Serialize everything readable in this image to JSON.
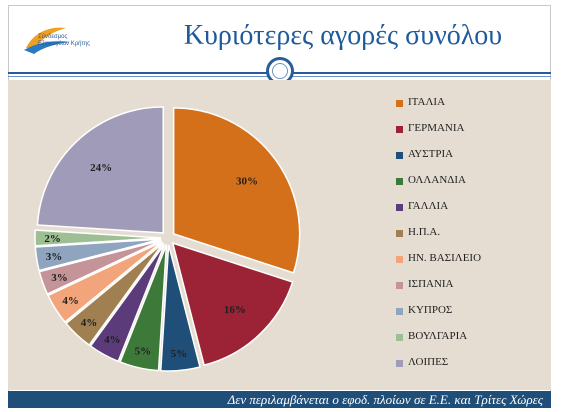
{
  "header": {
    "logo_text": "Σύνδεσμος\nΕξαγωγέων Κρήτης",
    "title": "Κυριότερες αγορές συνόλου"
  },
  "footer": {
    "note": "Δεν περιλαμβάνεται ο εφοδ. πλοίων σε Ε.Ε. και Τρίτες Χώρες"
  },
  "colors": {
    "accent": "#1f5a9a",
    "panel": "#e6ddd2",
    "footer": "#1f4e79"
  },
  "chart_data": {
    "type": "pie",
    "title": "Κυριότερες αγορές συνόλου",
    "legend_position": "right",
    "exploded": true,
    "slices": [
      {
        "label": "ΙΤΑΛΙΑ",
        "value": 30,
        "value_label": "30%",
        "color": "#d5701a"
      },
      {
        "label": "ΓΕΡΜΑΝΙΑ",
        "value": 16,
        "value_label": "16%",
        "color": "#9b2335"
      },
      {
        "label": "ΑΥΣΤΡΙΑ",
        "value": 5,
        "value_label": "5%",
        "color": "#1f4e79"
      },
      {
        "label": "ΟΛΛΑΝΔΙΑ",
        "value": 5,
        "value_label": "5%",
        "color": "#3d7a3a"
      },
      {
        "label": "ΓΑΛΛΙΑ",
        "value": 4,
        "value_label": "4%",
        "color": "#5b3b7a"
      },
      {
        "label": "Η.Π.Α.",
        "value": 4,
        "value_label": "4%",
        "color": "#a08050"
      },
      {
        "label": "ΗΝ. ΒΑΣΙΛΕΙΟ",
        "value": 4,
        "value_label": "4%",
        "color": "#f2a57a"
      },
      {
        "label": "ΙΣΠΑΝΙΑ",
        "value": 3,
        "value_label": "3%",
        "color": "#c49498"
      },
      {
        "label": "ΚΥΠΡΟΣ",
        "value": 3,
        "value_label": "3%",
        "color": "#8fa4bf"
      },
      {
        "label": "ΒΟΥΛΓΑΡΙΑ",
        "value": 2,
        "value_label": "2%",
        "color": "#9ebf93"
      },
      {
        "label": "ΛΟΙΠΕΣ",
        "value": 24,
        "value_label": "24%",
        "color": "#a09bb8"
      }
    ]
  }
}
